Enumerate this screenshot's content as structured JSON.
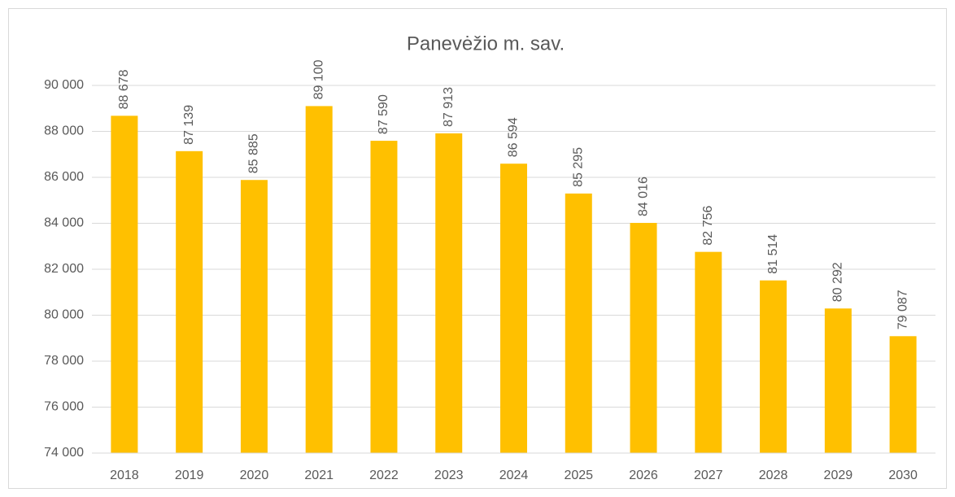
{
  "chart_data": {
    "type": "bar",
    "title": "Panevėžio m. sav.",
    "categories": [
      "2018",
      "2019",
      "2020",
      "2021",
      "2022",
      "2023",
      "2024",
      "2025",
      "2026",
      "2027",
      "2028",
      "2029",
      "2030"
    ],
    "values": [
      88678,
      87139,
      85885,
      89100,
      87590,
      87913,
      86594,
      85295,
      84016,
      82756,
      81514,
      80292,
      79087
    ],
    "value_labels": [
      "88 678",
      "87 139",
      "85 885",
      "89 100",
      "87 590",
      "87 913",
      "86 594",
      "85 295",
      "84 016",
      "82 756",
      "81 514",
      "80 292",
      "79 087"
    ],
    "color": "#ffc000",
    "ylim": [
      74000,
      90000
    ],
    "yticks": [
      {
        "value": 74000,
        "label": "74 000"
      },
      {
        "value": 76000,
        "label": "76 000"
      },
      {
        "value": 78000,
        "label": "78 000"
      },
      {
        "value": 80000,
        "label": "80 000"
      },
      {
        "value": 82000,
        "label": "82 000"
      },
      {
        "value": 84000,
        "label": "84 000"
      },
      {
        "value": 86000,
        "label": "86 000"
      },
      {
        "value": 88000,
        "label": "88 000"
      },
      {
        "value": 90000,
        "label": "90 000"
      }
    ],
    "grid": true
  }
}
